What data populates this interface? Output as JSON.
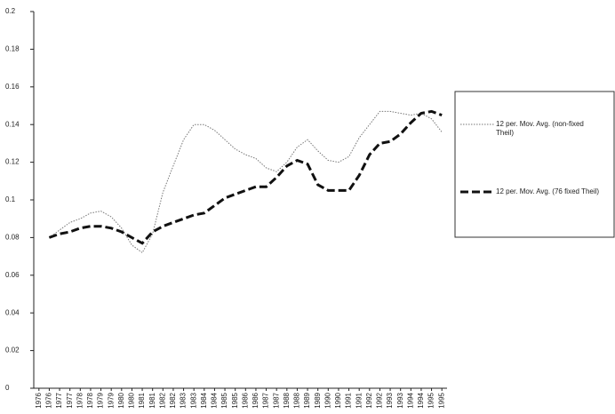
{
  "chart_data": {
    "type": "line",
    "categories": [
      "1976",
      "1976",
      "1977",
      "1977",
      "1978",
      "1978",
      "1979",
      "1979",
      "1980",
      "1980",
      "1981",
      "1981",
      "1982",
      "1982",
      "1983",
      "1983",
      "1984",
      "1984",
      "1985",
      "1985",
      "1986",
      "1986",
      "1987",
      "1987",
      "1988",
      "1988",
      "1989",
      "1989",
      "1990",
      "1990",
      "1991",
      "1991",
      "1992",
      "1992",
      "1993",
      "1993",
      "1994",
      "1994",
      "1995",
      "1995"
    ],
    "series": [
      {
        "name": "12 per. Mov. Avg. (non-fixed Theil)",
        "color": "#777777",
        "style": "dotted",
        "values": [
          null,
          0.08,
          0.084,
          0.088,
          0.09,
          0.093,
          0.094,
          0.091,
          0.085,
          0.076,
          0.072,
          0.082,
          0.104,
          0.118,
          0.132,
          0.14,
          0.14,
          0.137,
          0.132,
          0.127,
          0.124,
          0.122,
          0.117,
          0.115,
          0.12,
          0.128,
          0.132,
          0.126,
          0.121,
          0.12,
          0.123,
          0.133,
          0.14,
          0.147,
          0.147,
          0.146,
          0.145,
          0.146,
          0.143,
          0.136
        ]
      },
      {
        "name": "12 per. Mov. Avg. (76 fixed Theil)",
        "color": "#111111",
        "style": "dashed",
        "values": [
          null,
          0.08,
          0.082,
          0.083,
          0.085,
          0.086,
          0.086,
          0.085,
          0.083,
          0.08,
          0.077,
          0.083,
          0.086,
          0.088,
          0.09,
          0.092,
          0.093,
          0.097,
          0.101,
          0.103,
          0.105,
          0.107,
          0.107,
          0.112,
          0.118,
          0.121,
          0.119,
          0.108,
          0.105,
          0.105,
          0.105,
          0.113,
          0.124,
          0.13,
          0.131,
          0.135,
          0.141,
          0.146,
          0.147,
          0.145
        ]
      }
    ],
    "ylim": [
      0,
      0.2
    ],
    "yticks": [
      0,
      0.02,
      0.04,
      0.06,
      0.08,
      0.1,
      0.12,
      0.14,
      0.16,
      0.18,
      0.2
    ],
    "grid": false,
    "legend": "right"
  }
}
